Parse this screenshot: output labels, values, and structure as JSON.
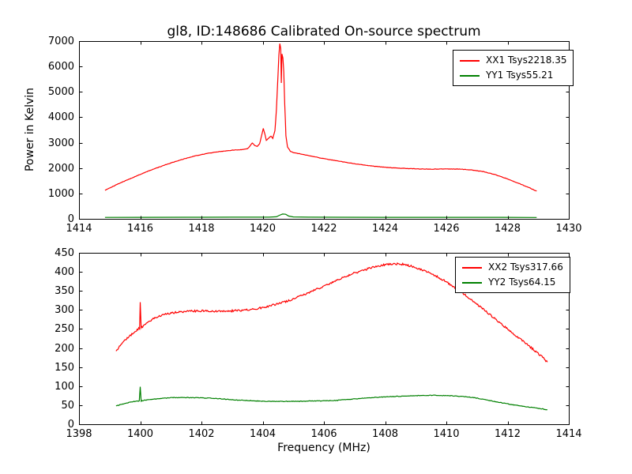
{
  "figure": {
    "title": "gl8, ID:148686 Calibrated On-source spectrum",
    "background": "#ffffff",
    "frame_color": "#000000"
  },
  "chart_data": [
    {
      "type": "line",
      "xlim": [
        1414,
        1430
      ],
      "ylim": [
        0,
        7000
      ],
      "xticks": [
        1414,
        1416,
        1418,
        1420,
        1422,
        1424,
        1426,
        1428,
        1430
      ],
      "yticks": [
        0,
        1000,
        2000,
        3000,
        4000,
        5000,
        6000,
        7000
      ],
      "xlabel": "",
      "ylabel": "Power in Kelvin",
      "grid": false,
      "legend_position": "upper right",
      "series": [
        {
          "name": "XX1",
          "legend": "XX1 Tsys2218.35",
          "color": "#ff0000",
          "noise": 8,
          "points": [
            [
              1414.85,
              1120
            ],
            [
              1415.1,
              1270
            ],
            [
              1415.4,
              1440
            ],
            [
              1415.8,
              1650
            ],
            [
              1416.2,
              1850
            ],
            [
              1416.6,
              2030
            ],
            [
              1417.0,
              2200
            ],
            [
              1417.4,
              2350
            ],
            [
              1417.8,
              2480
            ],
            [
              1418.2,
              2580
            ],
            [
              1418.6,
              2650
            ],
            [
              1419.0,
              2700
            ],
            [
              1419.35,
              2730
            ],
            [
              1419.5,
              2760
            ],
            [
              1419.58,
              2860
            ],
            [
              1419.66,
              2985
            ],
            [
              1419.74,
              2880
            ],
            [
              1419.82,
              2850
            ],
            [
              1419.9,
              2950
            ],
            [
              1419.97,
              3300
            ],
            [
              1420.02,
              3560
            ],
            [
              1420.07,
              3350
            ],
            [
              1420.12,
              3090
            ],
            [
              1420.2,
              3180
            ],
            [
              1420.27,
              3260
            ],
            [
              1420.33,
              3170
            ],
            [
              1420.4,
              3480
            ],
            [
              1420.45,
              4300
            ],
            [
              1420.5,
              5660
            ],
            [
              1420.53,
              6440
            ],
            [
              1420.56,
              6900
            ],
            [
              1420.59,
              6700
            ],
            [
              1420.61,
              5350
            ],
            [
              1420.63,
              6490
            ],
            [
              1420.66,
              6340
            ],
            [
              1420.69,
              5800
            ],
            [
              1420.72,
              4520
            ],
            [
              1420.76,
              3280
            ],
            [
              1420.81,
              2840
            ],
            [
              1420.9,
              2670
            ],
            [
              1421.0,
              2610
            ],
            [
              1421.3,
              2540
            ],
            [
              1421.7,
              2440
            ],
            [
              1422.1,
              2350
            ],
            [
              1422.5,
              2270
            ],
            [
              1423.0,
              2170
            ],
            [
              1423.5,
              2090
            ],
            [
              1424.0,
              2030
            ],
            [
              1424.5,
              1990
            ],
            [
              1425.0,
              1970
            ],
            [
              1425.5,
              1955
            ],
            [
              1426.0,
              1965
            ],
            [
              1426.4,
              1960
            ],
            [
              1426.8,
              1930
            ],
            [
              1427.2,
              1860
            ],
            [
              1427.6,
              1740
            ],
            [
              1428.0,
              1570
            ],
            [
              1428.4,
              1380
            ],
            [
              1428.7,
              1230
            ],
            [
              1428.95,
              1090
            ]
          ]
        },
        {
          "name": "YY1",
          "legend": "YY1 Tsys55.21",
          "color": "#008000",
          "noise": 0,
          "points": [
            [
              1414.85,
              55
            ],
            [
              1416.0,
              60
            ],
            [
              1417.5,
              62
            ],
            [
              1419.0,
              64
            ],
            [
              1420.2,
              66
            ],
            [
              1420.45,
              80
            ],
            [
              1420.55,
              140
            ],
            [
              1420.65,
              190
            ],
            [
              1420.75,
              180
            ],
            [
              1420.85,
              110
            ],
            [
              1421.0,
              75
            ],
            [
              1421.5,
              64
            ],
            [
              1422.5,
              62
            ],
            [
              1424.0,
              60
            ],
            [
              1426.0,
              60
            ],
            [
              1427.5,
              58
            ],
            [
              1428.95,
              52
            ]
          ]
        }
      ]
    },
    {
      "type": "line",
      "xlim": [
        1398,
        1414
      ],
      "ylim": [
        0,
        450
      ],
      "xticks": [
        1398,
        1400,
        1402,
        1404,
        1406,
        1408,
        1410,
        1412,
        1414
      ],
      "yticks": [
        0,
        50,
        100,
        150,
        200,
        250,
        300,
        350,
        400,
        450
      ],
      "xlabel": "Frequency (MHz)",
      "ylabel": "",
      "grid": false,
      "legend_position": "upper right",
      "series": [
        {
          "name": "XX2",
          "legend": "XX2 Tsys317.66",
          "color": "#ff0000",
          "noise": 2.5,
          "points": [
            [
              1399.21,
              192
            ],
            [
              1399.4,
              212
            ],
            [
              1399.6,
              228
            ],
            [
              1399.8,
              242
            ],
            [
              1399.95,
              251
            ],
            [
              1399.98,
              252
            ],
            [
              1400.0,
              322
            ],
            [
              1400.03,
              252
            ],
            [
              1400.15,
              261
            ],
            [
              1400.3,
              271
            ],
            [
              1400.5,
              279
            ],
            [
              1400.7,
              286
            ],
            [
              1400.95,
              291
            ],
            [
              1401.3,
              295
            ],
            [
              1401.7,
              297
            ],
            [
              1402.1,
              298
            ],
            [
              1402.5,
              297
            ],
            [
              1402.9,
              297
            ],
            [
              1403.3,
              299
            ],
            [
              1403.7,
              302
            ],
            [
              1404.1,
              308
            ],
            [
              1404.5,
              316
            ],
            [
              1404.9,
              326
            ],
            [
              1405.3,
              338
            ],
            [
              1405.7,
              352
            ],
            [
              1406.1,
              366
            ],
            [
              1406.5,
              381
            ],
            [
              1406.9,
              394
            ],
            [
              1407.3,
              405
            ],
            [
              1407.7,
              414
            ],
            [
              1408.0,
              419
            ],
            [
              1408.3,
              421
            ],
            [
              1408.6,
              420
            ],
            [
              1408.9,
              414
            ],
            [
              1409.2,
              405
            ],
            [
              1409.6,
              392
            ],
            [
              1410.0,
              374
            ],
            [
              1410.4,
              352
            ],
            [
              1410.8,
              328
            ],
            [
              1411.2,
              302
            ],
            [
              1411.6,
              276
            ],
            [
              1412.0,
              250
            ],
            [
              1412.4,
              224
            ],
            [
              1412.8,
              199
            ],
            [
              1413.1,
              179
            ],
            [
              1413.3,
              163
            ]
          ]
        },
        {
          "name": "YY2",
          "legend": "YY2 Tsys64.15",
          "color": "#008000",
          "noise": 0.8,
          "points": [
            [
              1399.21,
              48
            ],
            [
              1399.5,
              55
            ],
            [
              1399.8,
              60
            ],
            [
              1399.97,
              61
            ],
            [
              1400.0,
              98
            ],
            [
              1400.03,
              61
            ],
            [
              1400.3,
              65
            ],
            [
              1400.7,
              68
            ],
            [
              1401.1,
              70
            ],
            [
              1401.6,
              70
            ],
            [
              1402.1,
              69
            ],
            [
              1402.6,
              67
            ],
            [
              1403.1,
              64
            ],
            [
              1403.6,
              62
            ],
            [
              1404.1,
              60
            ],
            [
              1404.6,
              60
            ],
            [
              1405.1,
              60
            ],
            [
              1405.6,
              61
            ],
            [
              1406.1,
              62
            ],
            [
              1406.35,
              62
            ],
            [
              1406.6,
              64
            ],
            [
              1407.1,
              67
            ],
            [
              1407.6,
              70
            ],
            [
              1408.1,
              72
            ],
            [
              1408.6,
              74
            ],
            [
              1409.1,
              75
            ],
            [
              1409.6,
              76
            ],
            [
              1410.1,
              75
            ],
            [
              1410.5,
              73
            ],
            [
              1410.9,
              70
            ],
            [
              1411.3,
              64
            ],
            [
              1411.7,
              58
            ],
            [
              1412.1,
              52
            ],
            [
              1412.5,
              47
            ],
            [
              1412.9,
              43
            ],
            [
              1413.3,
              38
            ]
          ]
        }
      ]
    }
  ]
}
